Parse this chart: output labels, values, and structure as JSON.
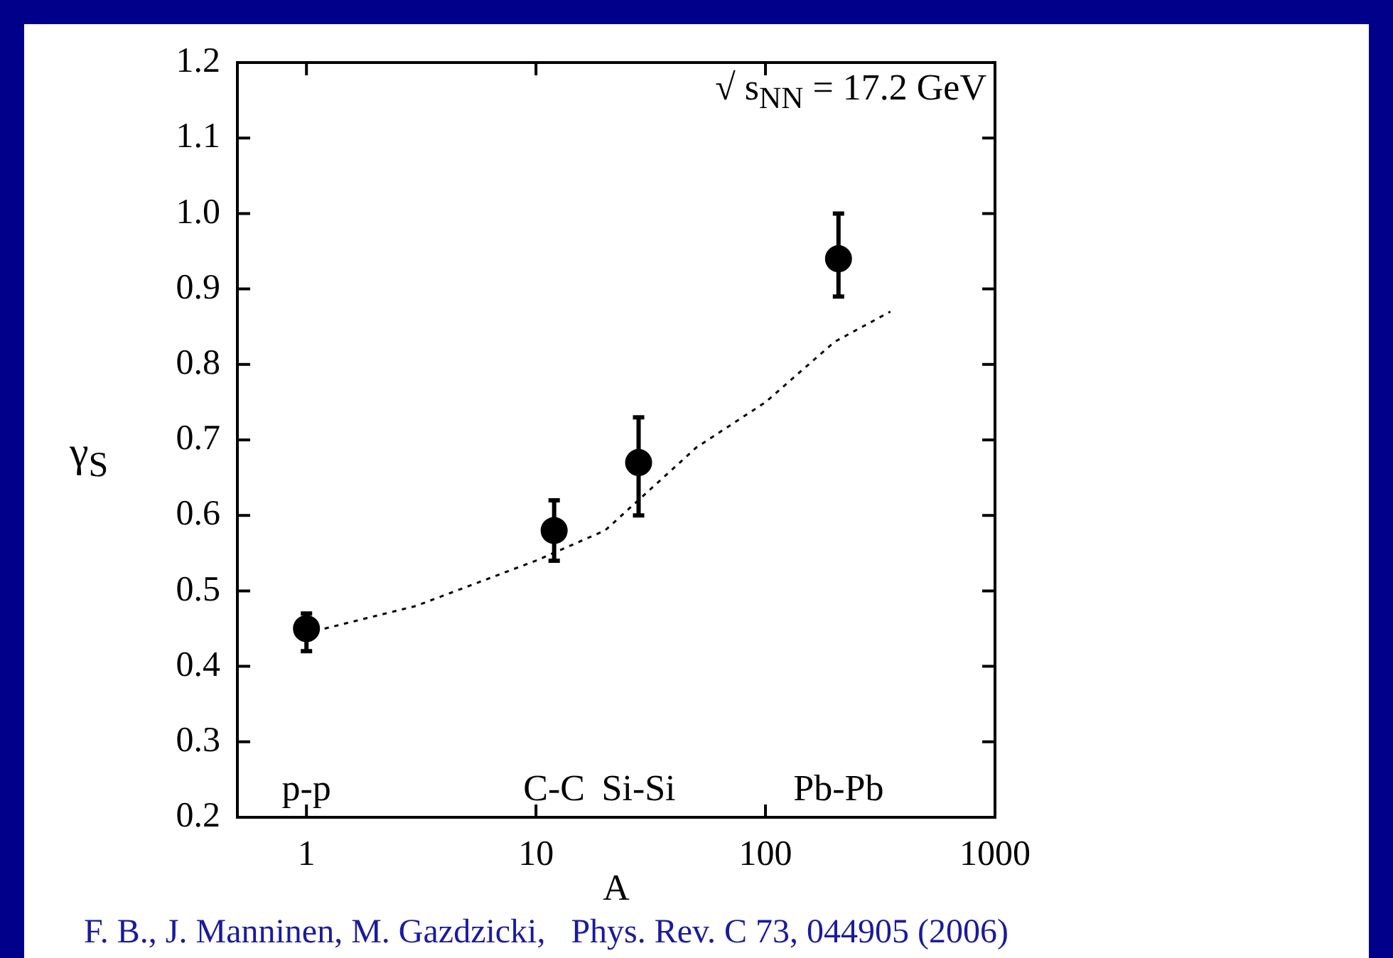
{
  "chart_data": {
    "type": "scatter",
    "xlabel": "A",
    "ylabel": "γ$_{S}$",
    "log": "x",
    "grid": false,
    "legend": false,
    "xlim": [
      0.5,
      1000
    ],
    "xticks": [
      1,
      10,
      100,
      1000
    ],
    "ylim": [
      0.2,
      1.2
    ],
    "yticks": [
      0.2,
      0.3,
      0.4,
      0.5,
      0.6,
      0.7,
      0.8,
      0.9,
      {
        "value": 1,
        "label": "1.0"
      },
      1.1,
      1.2
    ],
    "series": [
      {
        "color": "#000000",
        "marker": "circle",
        "x": [
          1,
          12,
          28,
          208
        ],
        "values": [
          0.45,
          0.58,
          0.67,
          0.94
        ],
        "errors": [
          [
            0.42,
            0.47
          ],
          [
            0.54,
            0.62
          ],
          [
            0.6,
            0.73
          ],
          [
            0.89,
            1.0
          ]
        ]
      },
      {
        "type": "line",
        "color": "#000000",
        "marker": "none",
        "line_style": "dotted",
        "x": [
          1.2,
          3,
          10,
          20,
          50,
          100,
          200,
          350
        ],
        "values": [
          0.45,
          0.48,
          0.54,
          0.58,
          0.69,
          0.75,
          0.83,
          0.87
        ]
      }
    ],
    "annotations": [
      "√ s$_{NN}$ = 17.2 GeV",
      "p-p",
      "C-C",
      "Si-Si",
      "Pb-Pb",
      "F. B., J. Manninen, M. Gazdzicki,   Phys. Rev. C 73, 044905 (2006)"
    ]
  }
}
